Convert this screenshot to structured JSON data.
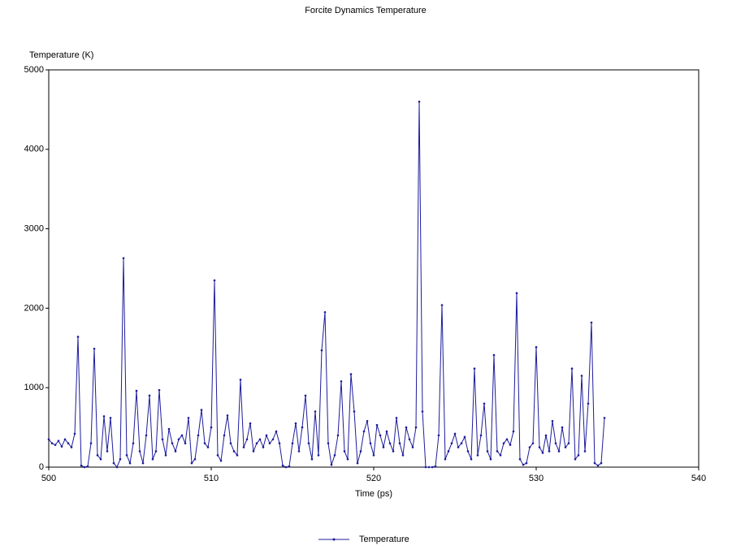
{
  "chart_data": {
    "type": "line",
    "title": "Forcite Dynamics Temperature",
    "x_label": "Time (ps)",
    "y_label": "Temperature (K)",
    "x": [
      500.0,
      500.2,
      500.4,
      500.6,
      500.8,
      501.0,
      501.2,
      501.4,
      501.6,
      501.8,
      502.0,
      502.2,
      502.4,
      502.6,
      502.8,
      503.0,
      503.2,
      503.4,
      503.6,
      503.8,
      504.0,
      504.2,
      504.4,
      504.6,
      504.8,
      505.0,
      505.2,
      505.4,
      505.6,
      505.8,
      506.0,
      506.2,
      506.4,
      506.6,
      506.8,
      507.0,
      507.2,
      507.4,
      507.6,
      507.8,
      508.0,
      508.2,
      508.4,
      508.6,
      508.8,
      509.0,
      509.2,
      509.4,
      509.6,
      509.8,
      510.0,
      510.2,
      510.4,
      510.6,
      510.8,
      511.0,
      511.2,
      511.4,
      511.6,
      511.8,
      512.0,
      512.2,
      512.4,
      512.6,
      512.8,
      513.0,
      513.2,
      513.4,
      513.6,
      513.8,
      514.0,
      514.2,
      514.4,
      514.6,
      514.8,
      515.0,
      515.2,
      515.4,
      515.6,
      515.8,
      516.0,
      516.2,
      516.4,
      516.6,
      516.8,
      517.0,
      517.2,
      517.4,
      517.6,
      517.8,
      518.0,
      518.2,
      518.4,
      518.6,
      518.8,
      519.0,
      519.2,
      519.4,
      519.6,
      519.8,
      520.0,
      520.2,
      520.4,
      520.6,
      520.8,
      521.0,
      521.2,
      521.4,
      521.6,
      521.8,
      522.0,
      522.2,
      522.4,
      522.6,
      522.8,
      523.0,
      523.2,
      523.4,
      523.6,
      523.8,
      524.0,
      524.2,
      524.4,
      524.6,
      524.8,
      525.0,
      525.2,
      525.4,
      525.6,
      525.8,
      526.0,
      526.2,
      526.4,
      526.6,
      526.8,
      527.0,
      527.2,
      527.4,
      527.6,
      527.8,
      528.0,
      528.2,
      528.4,
      528.6,
      528.8,
      529.0,
      529.2,
      529.4,
      529.6,
      529.8,
      530.0,
      530.2,
      530.4,
      530.6,
      530.8,
      531.0,
      531.2,
      531.4,
      531.6,
      531.8,
      532.0,
      532.2,
      532.4,
      532.6,
      532.8,
      533.0,
      533.2,
      533.4,
      533.6,
      533.8,
      534.0,
      534.2
    ],
    "series": [
      {
        "name": "Temperature",
        "color": "#1c1c9c",
        "values": [
          350,
          300,
          280,
          330,
          260,
          350,
          300,
          250,
          420,
          1640,
          20,
          0,
          10,
          300,
          1490,
          150,
          100,
          640,
          200,
          620,
          50,
          0,
          100,
          2630,
          150,
          50,
          300,
          960,
          200,
          50,
          400,
          900,
          100,
          200,
          970,
          350,
          150,
          480,
          300,
          200,
          350,
          400,
          300,
          620,
          50,
          100,
          400,
          720,
          300,
          250,
          500,
          2350,
          150,
          80,
          400,
          650,
          300,
          200,
          150,
          1100,
          250,
          350,
          550,
          200,
          300,
          350,
          250,
          400,
          300,
          350,
          450,
          300,
          20,
          0,
          10,
          300,
          550,
          200,
          500,
          900,
          300,
          100,
          700,
          150,
          1470,
          1950,
          300,
          30,
          150,
          400,
          1080,
          200,
          100,
          1170,
          700,
          50,
          200,
          450,
          580,
          300,
          150,
          530,
          400,
          250,
          450,
          300,
          200,
          620,
          300,
          150,
          500,
          350,
          250,
          500,
          4600,
          700,
          0,
          0,
          0,
          10,
          400,
          2040,
          100,
          200,
          300,
          420,
          250,
          300,
          380,
          200,
          100,
          1240,
          150,
          400,
          800,
          200,
          100,
          1410,
          200,
          150,
          300,
          350,
          280,
          450,
          2190,
          100,
          30,
          50,
          250,
          300,
          1510,
          250,
          180,
          400,
          200,
          580,
          300,
          200,
          500,
          250,
          300,
          1240,
          100,
          150,
          1150,
          200,
          800,
          1820,
          50,
          20,
          50,
          620
        ]
      }
    ],
    "xlim": [
      500,
      540
    ],
    "xticks": [
      500,
      510,
      520,
      530,
      540
    ],
    "ylim": [
      0,
      5000
    ],
    "yticks": [
      0,
      1000,
      2000,
      3000,
      4000,
      5000
    ],
    "legend": "bottom"
  }
}
